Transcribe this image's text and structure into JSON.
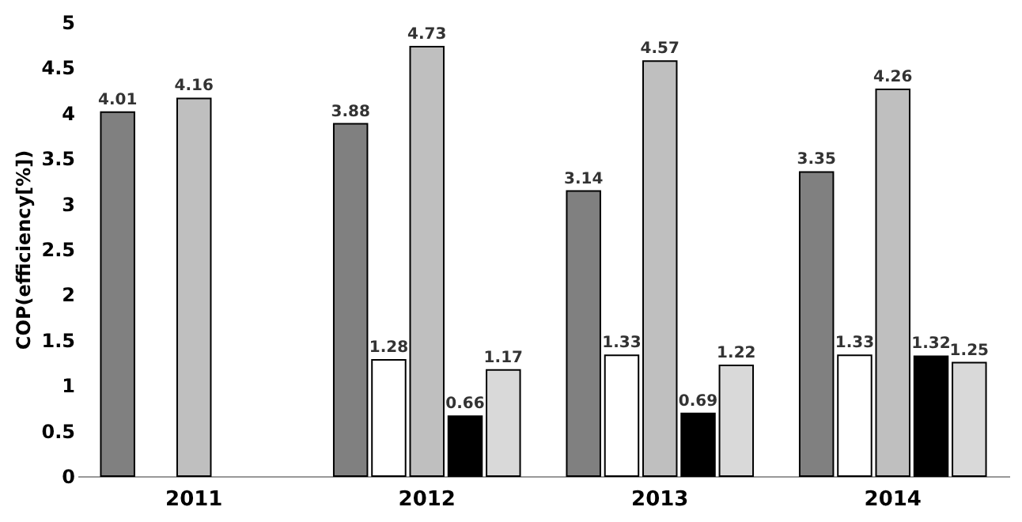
{
  "chart_data": {
    "type": "bar",
    "ylabel": "COP(efficiency[%])",
    "categories": [
      "2011",
      "2012",
      "2013",
      "2014"
    ],
    "series": [
      {
        "color": "#808080",
        "values": [
          4.01,
          3.88,
          3.14,
          3.35
        ]
      },
      {
        "color": "#ffffff",
        "values": [
          null,
          1.28,
          1.33,
          1.33
        ]
      },
      {
        "color": "#bfbfbf",
        "values": [
          4.16,
          4.73,
          4.57,
          4.26
        ]
      },
      {
        "color": "#000000",
        "values": [
          null,
          0.66,
          0.69,
          1.32
        ]
      },
      {
        "color": "#d9d9d9",
        "values": [
          null,
          1.17,
          1.22,
          1.25
        ]
      }
    ],
    "ylim": [
      0,
      5
    ],
    "yticks": [
      0,
      0.5,
      1,
      1.5,
      2,
      2.5,
      3,
      3.5,
      4,
      4.5,
      5
    ],
    "data_labels": true,
    "grid": false,
    "legend": false
  }
}
